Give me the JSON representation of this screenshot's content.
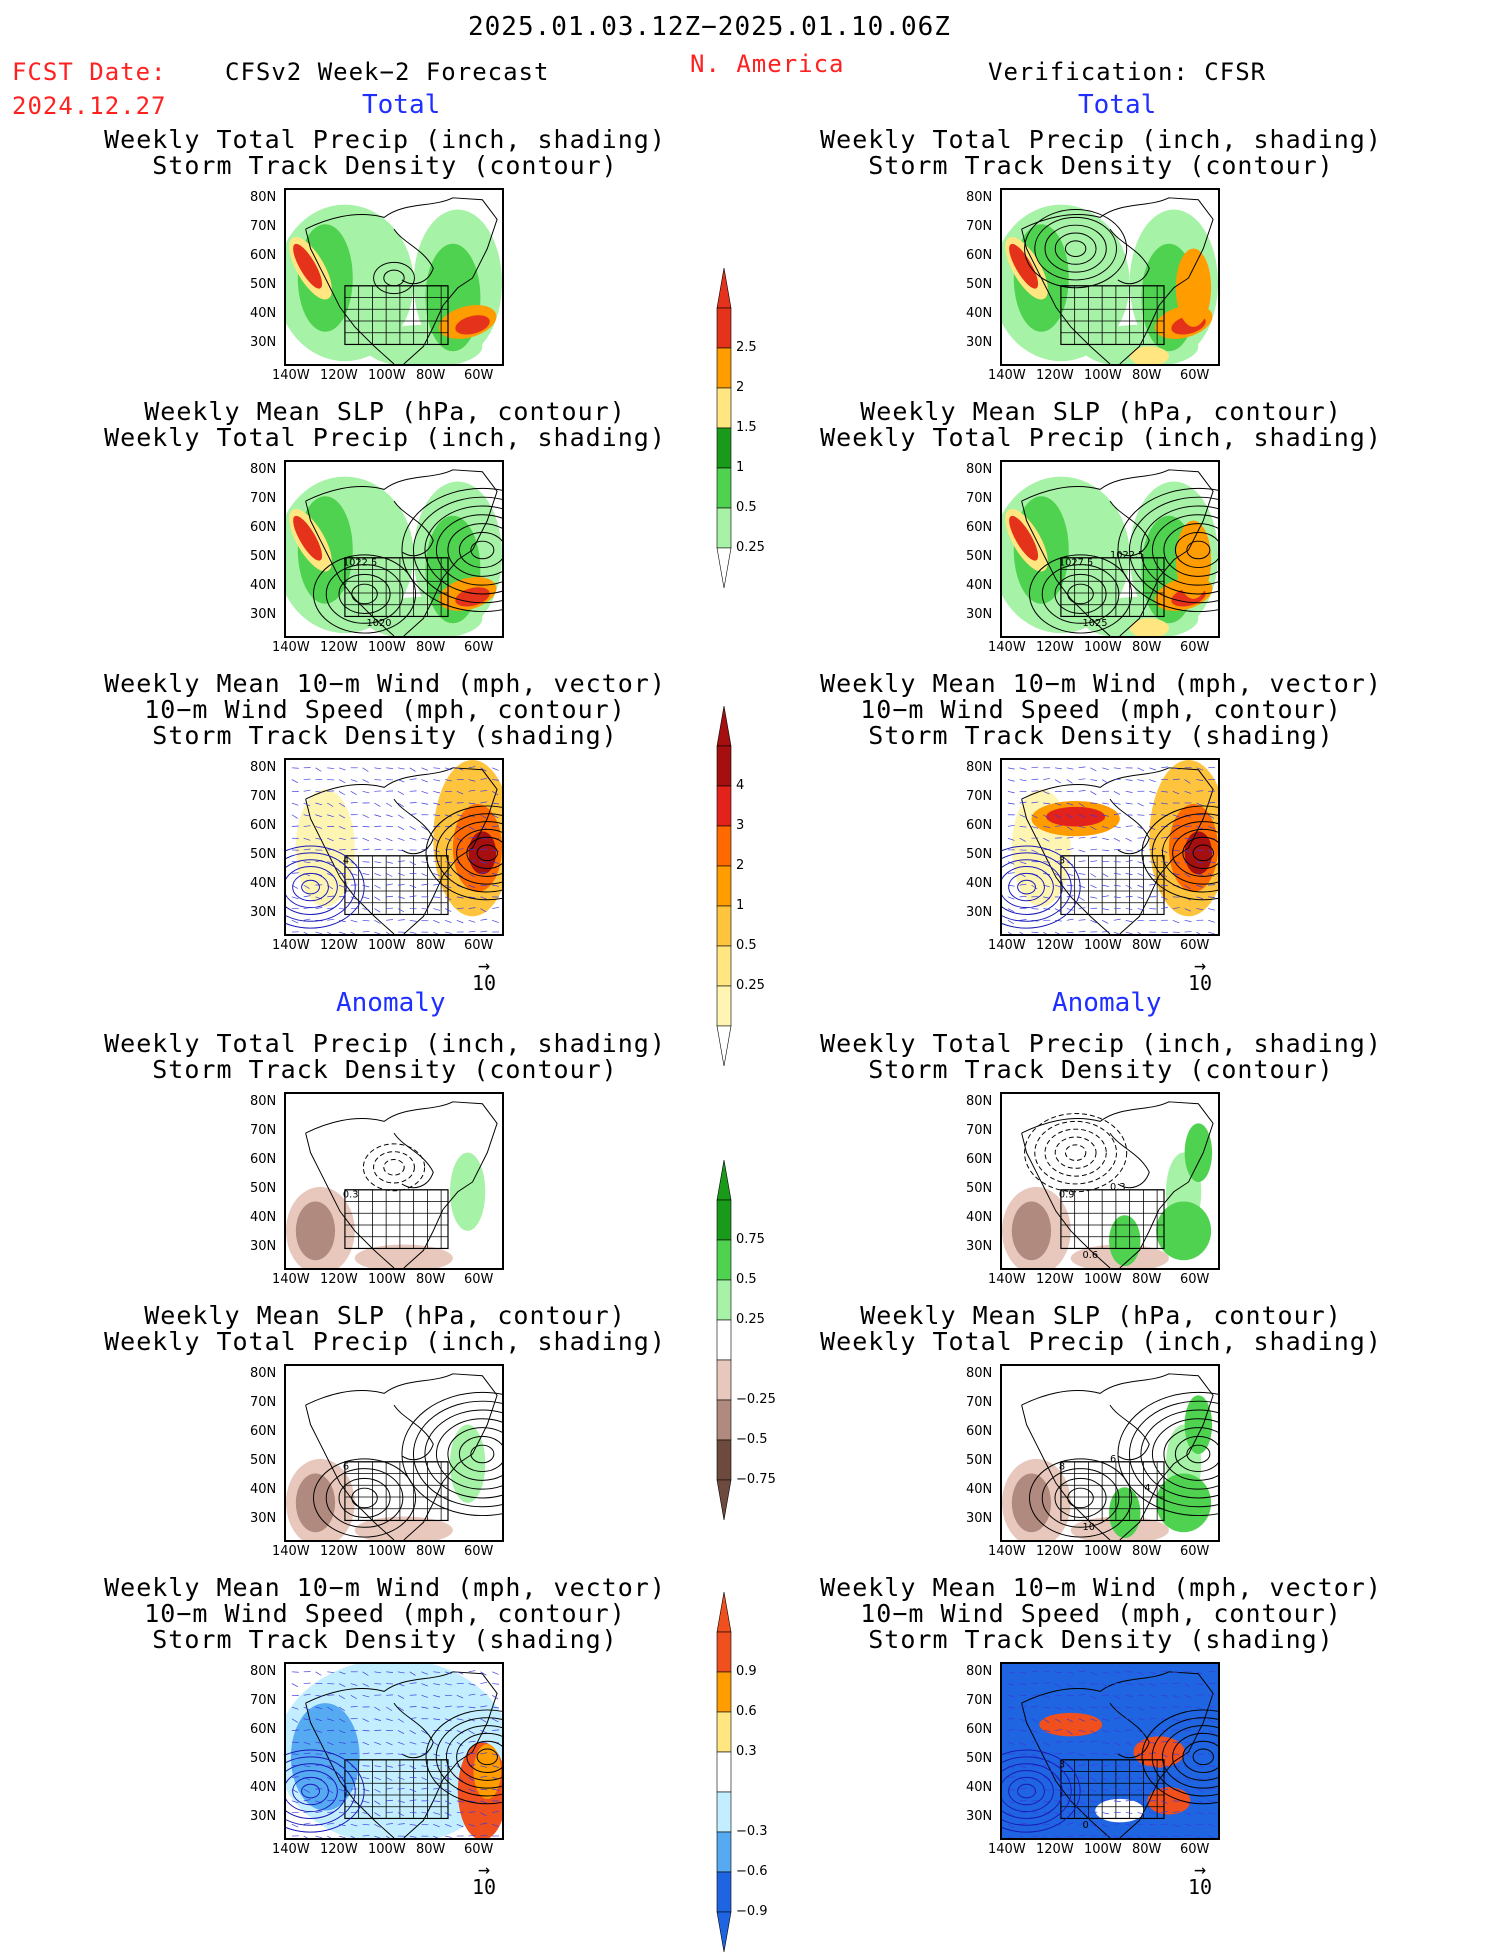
{
  "header": {
    "period": "2025.01.03.12Z−2025.01.10.06Z",
    "fcst_date_label": "FCST Date:",
    "fcst_date": "2024.12.27",
    "model": "CFSv2 Week−2 Forecast",
    "region": "N. America",
    "verification": "Verification: CFSR"
  },
  "sections": {
    "total": "Total",
    "anomaly": "Anomaly"
  },
  "panel_titles": {
    "precip_storm": [
      "Weekly Total Precip (inch, shading)",
      "Storm Track Density (contour)"
    ],
    "slp_precip": [
      "Weekly Mean SLP (hPa, contour)",
      "Weekly Total Precip (inch, shading)"
    ],
    "wind_storm": [
      "Weekly Mean 10−m Wind (mph, vector)",
      "10−m Wind Speed (mph, contour)",
      "Storm Track Density (shading)"
    ]
  },
  "axes": {
    "lat_labels": [
      "80N",
      "70N",
      "60N",
      "50N",
      "40N",
      "30N"
    ],
    "lon_labels": [
      "140W",
      "120W",
      "100W",
      "80W",
      "60W"
    ]
  },
  "vector_ref": "10",
  "map_contour_labels": {
    "slp_total_left": [
      "1022.5",
      "1020"
    ],
    "slp_total_right": [
      "1027.5",
      "1025",
      "1022.5"
    ],
    "wind_total_left": [
      "4"
    ],
    "wind_total_right": [
      "3"
    ],
    "precip_anom_left": [
      "0.3"
    ],
    "precip_anom_right": [
      "0.9",
      "0.6",
      "0.3"
    ],
    "slp_anom_left": [
      "6"
    ],
    "slp_anom_right": [
      "8",
      "10",
      "6",
      "4"
    ],
    "wind_anom_right": [
      "3",
      "0"
    ]
  },
  "colorbars": {
    "precip_total": {
      "labels": [
        "2.5",
        "2",
        "1.5",
        "1",
        "0.5",
        "0.25"
      ],
      "colors": [
        "#e4321b",
        "#ff9c00",
        "#ffe680",
        "#1a9a1a",
        "#4fd24f",
        "#a6f2a6"
      ]
    },
    "storm_total": {
      "labels": [
        "4",
        "3",
        "2",
        "1",
        "0.5",
        "0.25"
      ],
      "colors": [
        "#a50f0f",
        "#e3221b",
        "#ff6a00",
        "#ff9c00",
        "#ffc43d",
        "#ffe680",
        "#fff5b3"
      ]
    },
    "precip_anom": {
      "labels": [
        "0.75",
        "0.5",
        "0.25",
        "−0.25",
        "−0.5",
        "−0.75"
      ],
      "colors": [
        "#1a9a1a",
        "#4fd24f",
        "#a6f2a6",
        "#ffffff",
        "#e8c8bd",
        "#b08a7e",
        "#6e4a3e"
      ]
    },
    "storm_anom": {
      "labels": [
        "0.9",
        "0.6",
        "0.3",
        "−0.3",
        "−0.6",
        "−0.9"
      ],
      "colors": [
        "#f0501e",
        "#ff9c00",
        "#ffe680",
        "#ffffff",
        "#c2eeff",
        "#56aaf2",
        "#1f64e0"
      ]
    }
  }
}
